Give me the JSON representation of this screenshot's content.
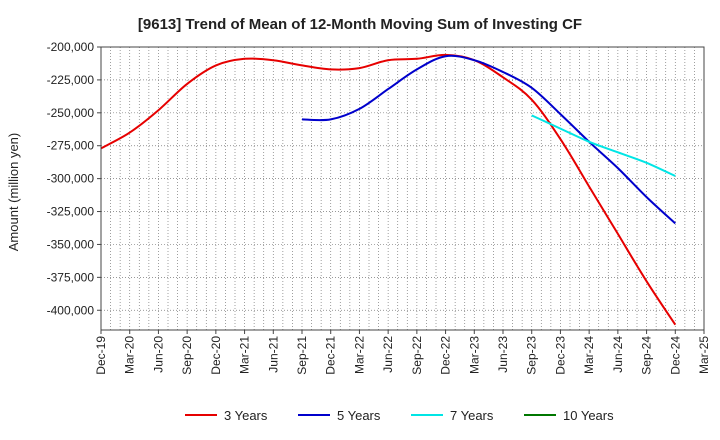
{
  "chart_data": {
    "type": "line",
    "title": "[9613]  Trend of Mean of 12-Month Moving Sum of Investing CF",
    "xlabel": "",
    "ylabel": "Amount (million yen)",
    "ylim": [
      -415000,
      -200000
    ],
    "yticks": [
      -200000,
      -225000,
      -250000,
      -275000,
      -300000,
      -325000,
      -350000,
      -375000,
      -400000
    ],
    "ytick_labels": [
      "-200,000",
      "-225,000",
      "-250,000",
      "-275,000",
      "-300,000",
      "-325,000",
      "-350,000",
      "-375,000",
      "-400,000"
    ],
    "x_categories": [
      "Dec-19",
      "Mar-20",
      "Jun-20",
      "Sep-20",
      "Dec-20",
      "Mar-21",
      "Jun-21",
      "Sep-21",
      "Dec-21",
      "Mar-22",
      "Jun-22",
      "Sep-22",
      "Dec-22",
      "Mar-23",
      "Jun-23",
      "Sep-23",
      "Dec-23",
      "Mar-24",
      "Jun-24",
      "Sep-24",
      "Dec-24",
      "Mar-25"
    ],
    "grid": true,
    "legend_position": "bottom",
    "series": [
      {
        "name": "3 Years",
        "color": "#e60000",
        "start_index": 0,
        "values": [
          -277000,
          -265000,
          -248000,
          -228000,
          -214000,
          -209000,
          -210000,
          -214000,
          -217000,
          -216000,
          -210000,
          -209000,
          -206000,
          -210000,
          -223000,
          -240000,
          -270000,
          -306000,
          -342000,
          -378000,
          -411000
        ]
      },
      {
        "name": "5 Years",
        "color": "#0000cc",
        "start_index": 7,
        "values": [
          -255000,
          -255000,
          -247000,
          -232000,
          -217000,
          -207000,
          -210000,
          -219000,
          -231000,
          -251000,
          -272000,
          -292000,
          -314000,
          -334000
        ]
      },
      {
        "name": "7 Years",
        "color": "#00e5e5",
        "start_index": 15,
        "values": [
          -252000,
          -262000,
          -272000,
          -280000,
          -288000,
          -298000
        ]
      },
      {
        "name": "10 Years",
        "color": "#007700",
        "start_index": 0,
        "values": []
      }
    ]
  }
}
